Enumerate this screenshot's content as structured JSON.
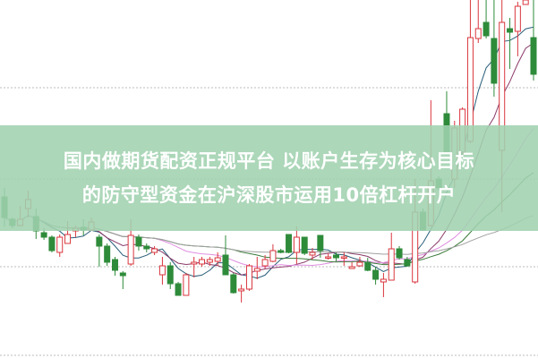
{
  "banner": {
    "line1": "国内做期货配资正规平台 以账户生存为核心目标",
    "line2": "的防守型资金在沪深股市运用10倍杠杆开户",
    "color": "#a0d2af"
  },
  "chart_data": {
    "type": "candlestick",
    "title": "",
    "grid": "horizontal dotted",
    "up_color": "#d9363e",
    "down_color": "#2e8b3a",
    "ma_colors": [
      "#2a5f7a",
      "#8a3a6a",
      "#e08ee0",
      "#3a7a3a",
      "#a0a0a0"
    ],
    "ylim": [
      0,
      400
    ],
    "candles_ohlc": [
      [
        180,
        157,
        190,
        147
      ],
      [
        155,
        148,
        157,
        145
      ],
      [
        148,
        155,
        170,
        147
      ],
      [
        167,
        177,
        187,
        157
      ],
      [
        158,
        142,
        167,
        133
      ],
      [
        140,
        135,
        145,
        132
      ],
      [
        135,
        120,
        137,
        118
      ],
      [
        118,
        135,
        138,
        113
      ],
      [
        128,
        138,
        153,
        128
      ],
      [
        142,
        145,
        148,
        135
      ],
      [
        146,
        143,
        155,
        137
      ],
      [
        143,
        152,
        157,
        142
      ],
      [
        135,
        125,
        138,
        102
      ],
      [
        125,
        107,
        128,
        103
      ],
      [
        110,
        98,
        113,
        92
      ],
      [
        95,
        92,
        97,
        77
      ],
      [
        105,
        137,
        155,
        103
      ],
      [
        135,
        125,
        138,
        120
      ],
      [
        125,
        122,
        128,
        118
      ],
      [
        118,
        122,
        125,
        115
      ],
      [
        93,
        103,
        113,
        82
      ],
      [
        103,
        83,
        107,
        77
      ],
      [
        83,
        70,
        85,
        70
      ],
      [
        70,
        93,
        95,
        70
      ],
      [
        105,
        107,
        113,
        90
      ],
      [
        105,
        110,
        113,
        102
      ],
      [
        107,
        110,
        113,
        103
      ],
      [
        108,
        112,
        118,
        103
      ],
      [
        115,
        93,
        137,
        93
      ],
      [
        93,
        73,
        95,
        72
      ],
      [
        75,
        77,
        82,
        62
      ],
      [
        77,
        103,
        105,
        75
      ],
      [
        97,
        100,
        113,
        88
      ],
      [
        103,
        110,
        115,
        100
      ],
      [
        108,
        120,
        127,
        107
      ],
      [
        120,
        118,
        122,
        117
      ],
      [
        138,
        118,
        138,
        117
      ],
      [
        118,
        135,
        147,
        105
      ],
      [
        135,
        117,
        135,
        115
      ],
      [
        115,
        118,
        123,
        110
      ],
      [
        137,
        120,
        137,
        112
      ],
      [
        112,
        113,
        117,
        110
      ],
      [
        115,
        112,
        118,
        108
      ],
      [
        112,
        113,
        118,
        103
      ],
      [
        100,
        102,
        107,
        100
      ],
      [
        103,
        107,
        113,
        102
      ],
      [
        107,
        98,
        112,
        97
      ],
      [
        98,
        88,
        102,
        82
      ],
      [
        85,
        88,
        95,
        68
      ],
      [
        87,
        122,
        140,
        87
      ],
      [
        122,
        112,
        125,
        110
      ],
      [
        110,
        103,
        113,
        102
      ],
      [
        85,
        163,
        200,
        83
      ],
      [
        163,
        143,
        167,
        142
      ],
      [
        148,
        198,
        288,
        147
      ],
      [
        200,
        190,
        203,
        187
      ],
      [
        273,
        230,
        298,
        227
      ],
      [
        200,
        257,
        265,
        190
      ],
      [
        230,
        278,
        280,
        227
      ],
      [
        242,
        358,
        400,
        240
      ],
      [
        357,
        368,
        400,
        352
      ],
      [
        375,
        360,
        400,
        357
      ],
      [
        357,
        307,
        400,
        292
      ],
      [
        232,
        375,
        400,
        163
      ],
      [
        368,
        364,
        380,
        323
      ],
      [
        365,
        393,
        398,
        337
      ],
      [
        395,
        400,
        400,
        395
      ],
      [
        358,
        317,
        400,
        310
      ]
    ]
  }
}
